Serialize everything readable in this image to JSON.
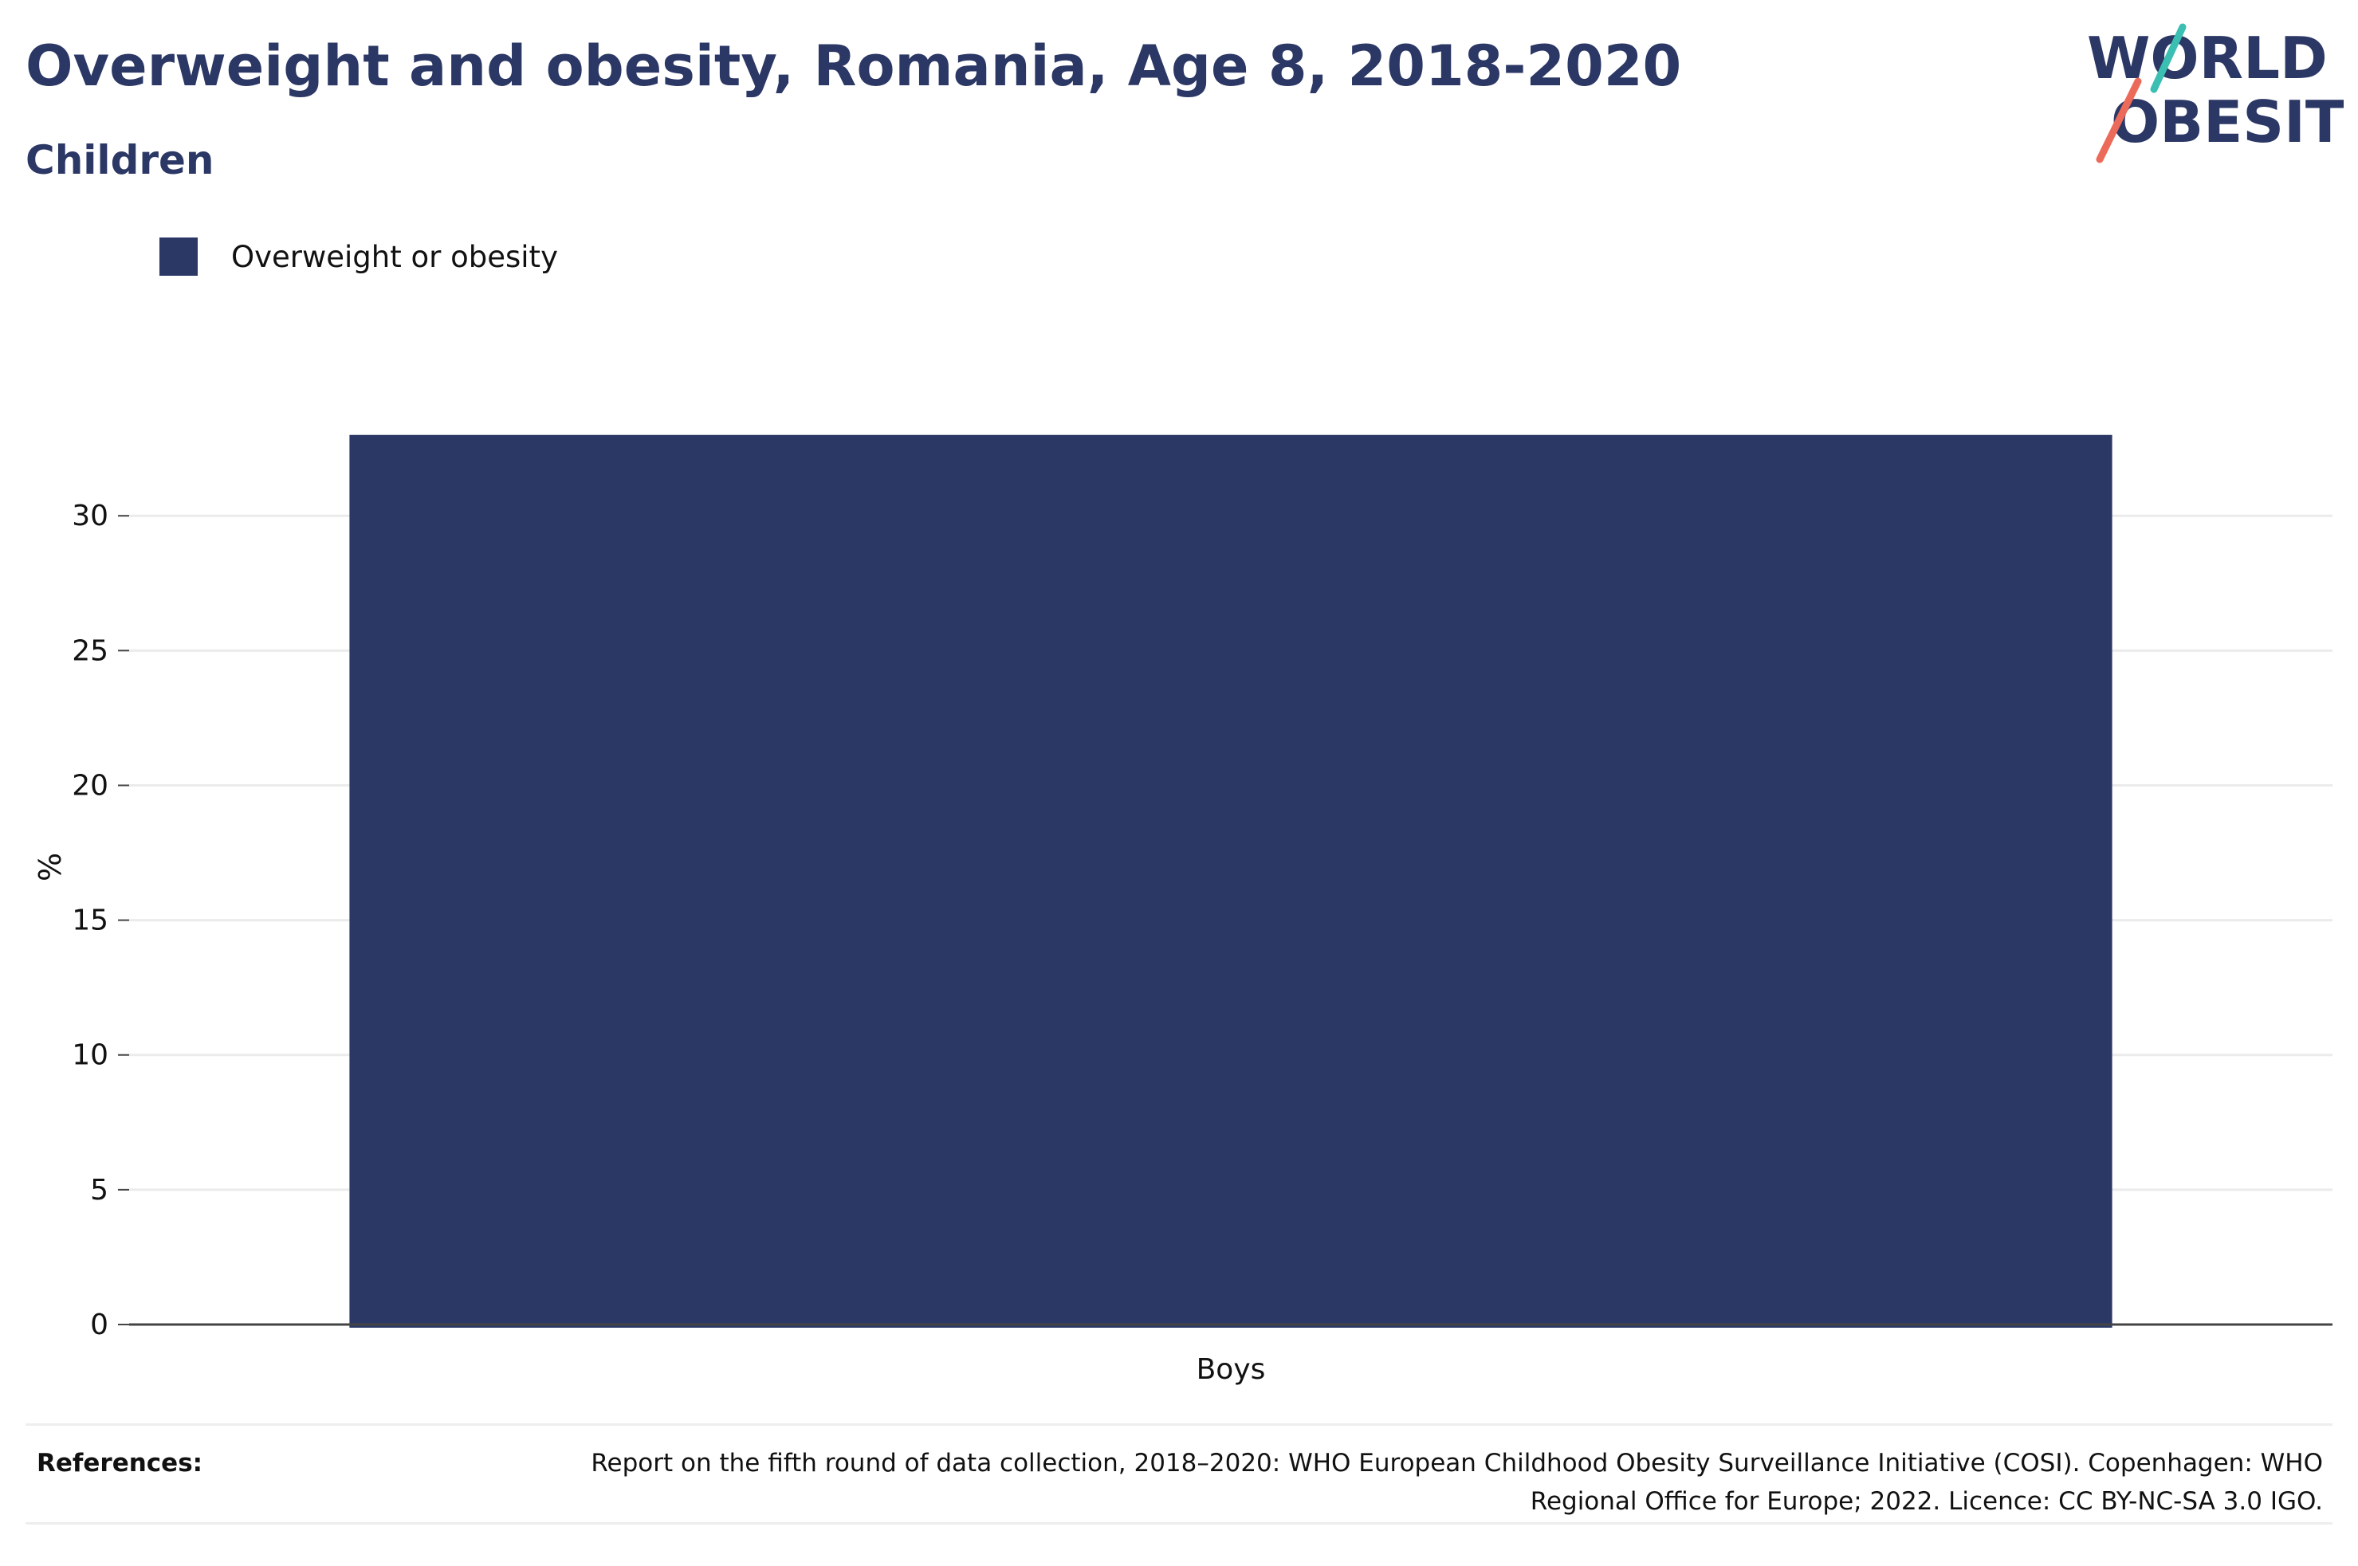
{
  "header": {
    "title": "Overweight and obesity, Romania, Age 8, 2018-2020",
    "subtitle": "Children"
  },
  "logo": {
    "line1": "WORLD",
    "line2": "OBESITY",
    "accent_teal": "#3bbfb2",
    "accent_coral": "#ec6a5a"
  },
  "chart_data": {
    "type": "bar",
    "categories": [
      "Boys"
    ],
    "series": [
      {
        "name": "Overweight or obesity",
        "values": [
          33
        ],
        "color": "#2b3764"
      }
    ],
    "ylabel": "%",
    "xlabel": "",
    "ylim": [
      0,
      34.5
    ],
    "yticks": [
      0,
      5,
      10,
      15,
      20,
      25,
      30
    ],
    "grid": true,
    "legend_position": "top-left"
  },
  "references": {
    "label": "References:",
    "text": "Report on the fifth round of data collection, 2018–2020: WHO European Childhood Obesity Surveillance Initiative (COSI). Copenhagen: WHO Regional Office for Europe; 2022. Licence: CC BY-NC-SA 3.0 IGO."
  }
}
